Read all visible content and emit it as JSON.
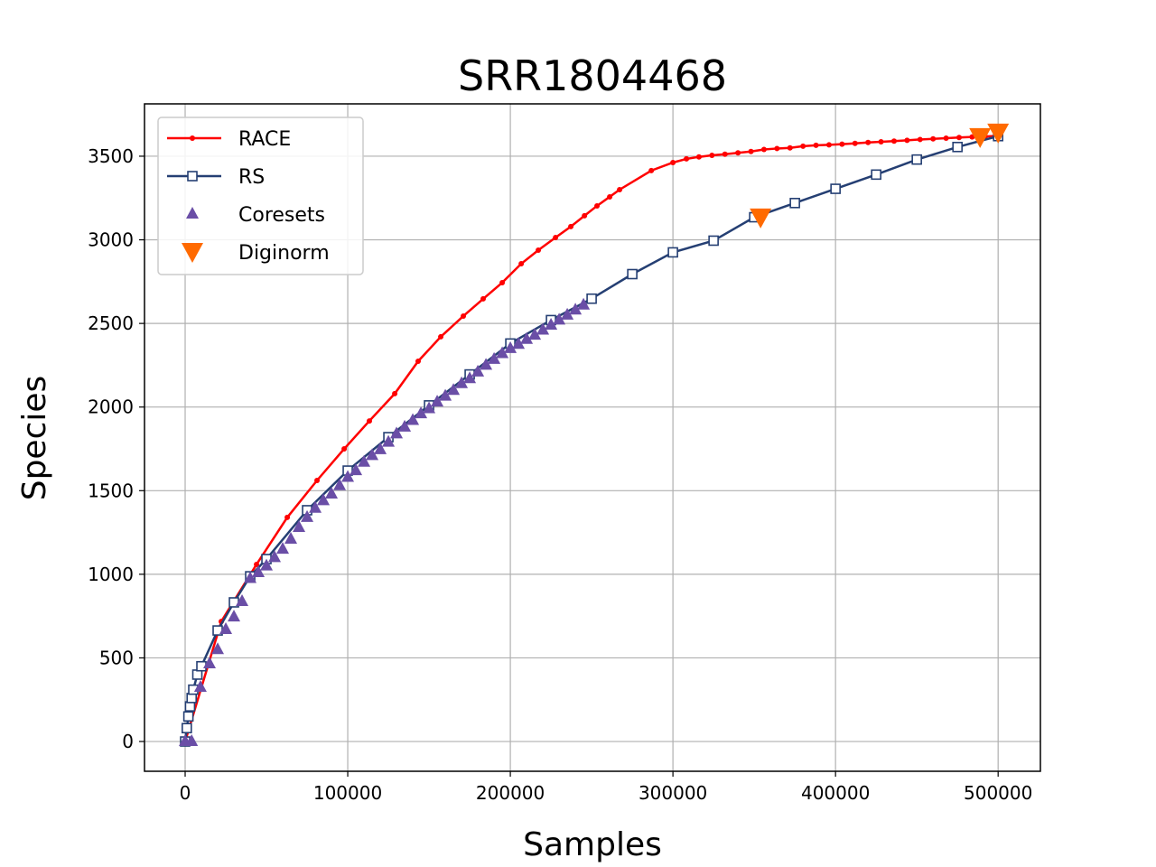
{
  "chart_data": {
    "type": "line",
    "title": "SRR1804468",
    "x_label": "Samples",
    "y_label": "Species",
    "xlim": [
      -25000,
      526000
    ],
    "ylim": [
      -178,
      3813
    ],
    "xticks": [
      0,
      100000,
      200000,
      300000,
      400000,
      500000
    ],
    "yticks": [
      0,
      500,
      1000,
      1500,
      2000,
      2500,
      3000,
      3500
    ],
    "grid": true,
    "legend": "upper left",
    "series": [
      {
        "name": "RACE",
        "color": "#ff0000",
        "marker": "dot",
        "line": true,
        "x": [
          0,
          22222,
          43900,
          62800,
          81100,
          97800,
          113300,
          128900,
          143300,
          157200,
          171100,
          183300,
          195000,
          206700,
          217200,
          227800,
          237200,
          245600,
          253300,
          261100,
          267200,
          286700,
          300000,
          308300,
          316000,
          324000,
          332000,
          340000,
          348000,
          356000,
          364000,
          372000,
          380000,
          388000,
          396000,
          404000,
          412000,
          420000,
          428000,
          436000,
          444000,
          452000,
          460000,
          468000,
          476000,
          484000,
          492000,
          500000
        ],
        "values": [
          0,
          718,
          1059,
          1340,
          1561,
          1750,
          1917,
          2080,
          2274,
          2420,
          2544,
          2647,
          2744,
          2857,
          2938,
          3014,
          3079,
          3144,
          3203,
          3257,
          3300,
          3414,
          3462,
          3484,
          3496,
          3505,
          3512,
          3520,
          3528,
          3540,
          3546,
          3550,
          3560,
          3565,
          3568,
          3572,
          3577,
          3582,
          3586,
          3590,
          3595,
          3600,
          3604,
          3608,
          3612,
          3615,
          3618,
          3622
        ]
      },
      {
        "name": "RS",
        "color": "#253f73",
        "marker": "square",
        "line": true,
        "x": [
          0,
          1000,
          2000,
          3000,
          4000,
          5000,
          7500,
          10000,
          20000,
          30000,
          40000,
          50000,
          75000,
          100000,
          125000,
          150000,
          175000,
          200000,
          225000,
          250000,
          275000,
          300000,
          325000,
          350000,
          375000,
          400000,
          425000,
          450000,
          475000,
          500000
        ],
        "values": [
          0,
          80,
          150,
          210,
          260,
          310,
          400,
          450,
          664,
          832,
          988,
          1091,
          1383,
          1620,
          1820,
          2010,
          2195,
          2380,
          2520,
          2648,
          2795,
          2925,
          2995,
          3135,
          3220,
          3305,
          3390,
          3480,
          3555,
          3620
        ]
      },
      {
        "name": "Coresets",
        "color": "#6a4ea6",
        "marker": "triangle",
        "line": false,
        "x": [
          0,
          4000,
          9400,
          15000,
          20000,
          25000,
          30000,
          35000,
          40000,
          45000,
          50000,
          55000,
          60000,
          65000,
          70000,
          75000,
          80000,
          85000,
          90000,
          95000,
          100000,
          105000,
          110000,
          115000,
          120000,
          125000,
          130000,
          135000,
          140000,
          145000,
          150000,
          155000,
          160000,
          165000,
          170000,
          175000,
          180000,
          185000,
          190000,
          195000,
          200000,
          205000,
          210000,
          215000,
          220000,
          225000,
          230000,
          235000,
          240000,
          245000
        ],
        "values": [
          0,
          0,
          324,
          465,
          550,
          670,
          745,
          837,
          975,
          1010,
          1050,
          1100,
          1150,
          1210,
          1280,
          1340,
          1395,
          1440,
          1480,
          1530,
          1580,
          1620,
          1670,
          1710,
          1745,
          1790,
          1840,
          1880,
          1920,
          1960,
          1990,
          2030,
          2065,
          2100,
          2140,
          2170,
          2210,
          2250,
          2285,
          2320,
          2350,
          2375,
          2405,
          2430,
          2460,
          2490,
          2520,
          2550,
          2580,
          2610
        ]
      },
      {
        "name": "Diginorm",
        "color": "#ff6a00",
        "marker": "triangle-down",
        "line": false,
        "x": [
          353900,
          488900,
          500000
        ],
        "values": [
          3133,
          3614,
          3641
        ]
      }
    ]
  }
}
